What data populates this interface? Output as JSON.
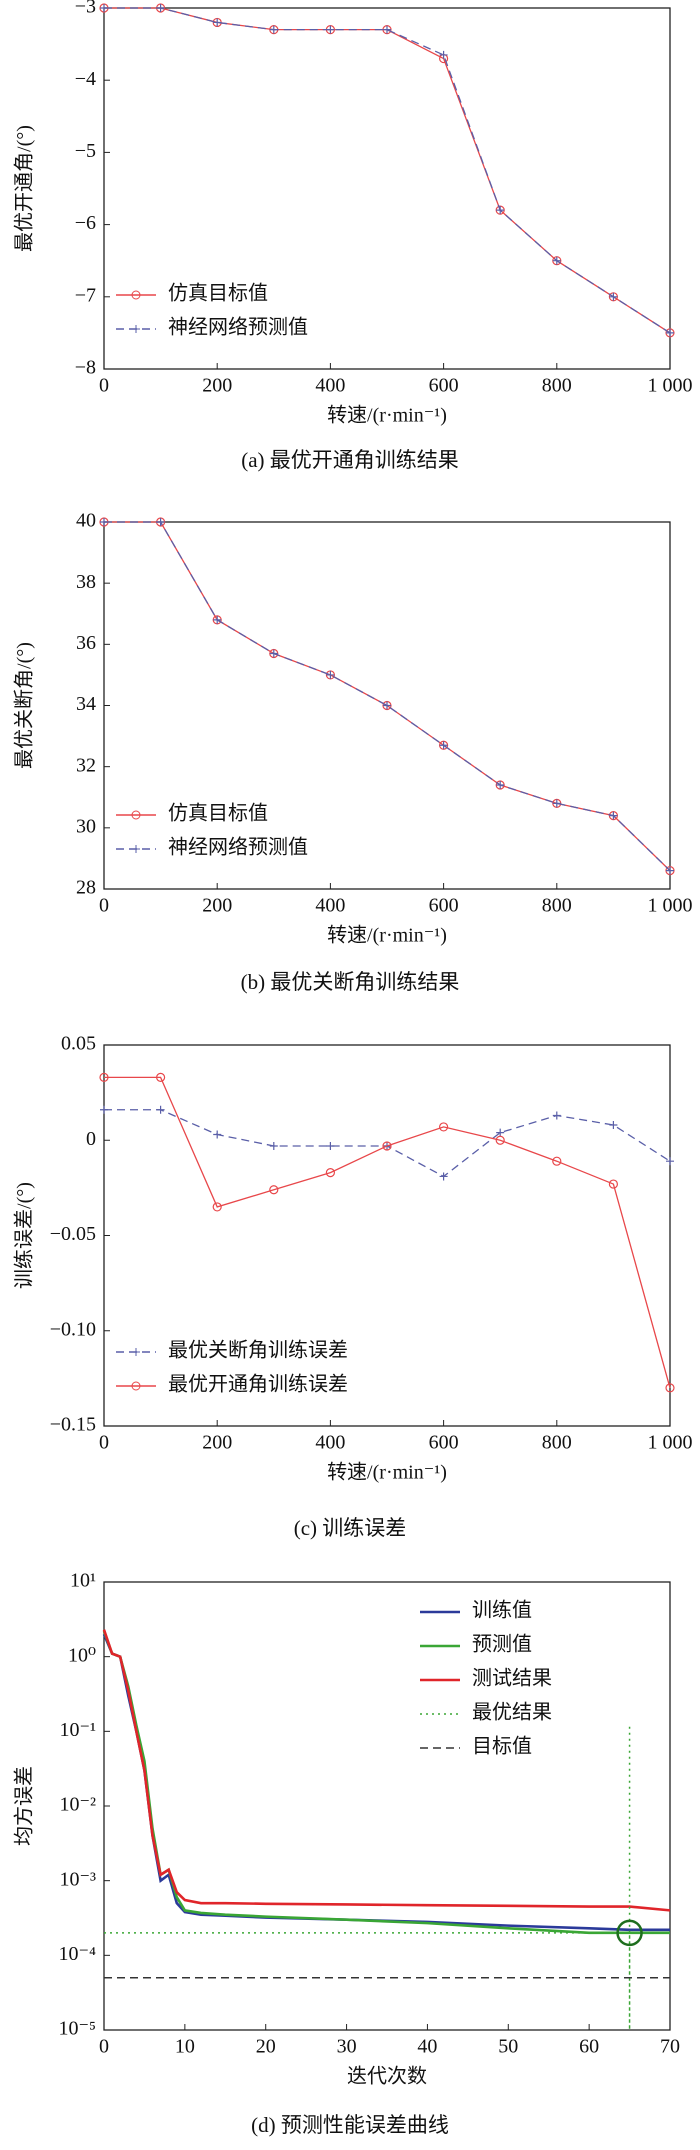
{
  "chart_data": [
    {
      "type": "line",
      "caption": "(a) 最优开通角训练结果",
      "xlabel": "转速/(r·min⁻¹)",
      "ylabel": "最优开通角/(°)",
      "x": [
        0,
        100,
        200,
        300,
        400,
        500,
        600,
        700,
        800,
        900,
        1000
      ],
      "xlim": [
        0,
        1000
      ],
      "xticks": [
        0,
        200,
        400,
        600,
        800,
        {
          "value": 1000,
          "label": "1 000"
        }
      ],
      "ylim": [
        -8,
        -3
      ],
      "yticks": [
        {
          "value": -8,
          "label": "−8"
        },
        {
          "value": -7,
          "label": "−7"
        },
        {
          "value": -6,
          "label": "−6"
        },
        {
          "value": -5,
          "label": "−5"
        },
        {
          "value": -4,
          "label": "−4"
        },
        {
          "value": -3,
          "label": "−3"
        }
      ],
      "legend": "lower left",
      "series": [
        {
          "name": "仿真目标值",
          "color": "#e8474a",
          "dash": "solid",
          "marker": "o",
          "values": [
            -3,
            -3,
            -3.2,
            -3.3,
            -3.3,
            -3.3,
            -3.7,
            -5.8,
            -6.5,
            -7.0,
            -7.5
          ]
        },
        {
          "name": "神经网络预测值",
          "color": "#5a5fa8",
          "dash": "dashed",
          "marker": "+",
          "values": [
            -3,
            -3,
            -3.2,
            -3.3,
            -3.3,
            -3.3,
            -3.65,
            -5.8,
            -6.5,
            -7.0,
            -7.5
          ]
        }
      ]
    },
    {
      "type": "line",
      "caption": "(b) 最优关断角训练结果",
      "xlabel": "转速/(r·min⁻¹)",
      "ylabel": "最优关断角/(°)",
      "x": [
        0,
        100,
        200,
        300,
        400,
        500,
        600,
        700,
        800,
        900,
        1000
      ],
      "xlim": [
        0,
        1000
      ],
      "xticks": [
        0,
        200,
        400,
        600,
        800,
        {
          "value": 1000,
          "label": "1 000"
        }
      ],
      "ylim": [
        28,
        40
      ],
      "yticks": [
        28,
        30,
        32,
        34,
        36,
        38,
        40
      ],
      "legend": "lower left",
      "series": [
        {
          "name": "仿真目标值",
          "color": "#e8474a",
          "dash": "solid",
          "marker": "o",
          "values": [
            40,
            40,
            36.8,
            35.7,
            35.0,
            34.0,
            32.7,
            31.4,
            30.8,
            30.4,
            28.6
          ]
        },
        {
          "name": "神经网络预测值",
          "color": "#5a5fa8",
          "dash": "dashed",
          "marker": "+",
          "values": [
            40,
            40,
            36.8,
            35.7,
            35.0,
            34.0,
            32.7,
            31.4,
            30.8,
            30.4,
            28.6
          ]
        }
      ]
    },
    {
      "type": "line",
      "caption": "(c) 训练误差",
      "xlabel": "转速/(r·min⁻¹)",
      "ylabel": "训练误差/(°)",
      "x": [
        0,
        100,
        200,
        300,
        400,
        500,
        600,
        700,
        800,
        900,
        1000
      ],
      "xlim": [
        0,
        1000
      ],
      "xticks": [
        0,
        200,
        400,
        600,
        800,
        {
          "value": 1000,
          "label": "1 000"
        }
      ],
      "ylim": [
        -0.15,
        0.05
      ],
      "yticks": [
        {
          "value": -0.15,
          "label": "−0.15"
        },
        {
          "value": -0.1,
          "label": "−0.10"
        },
        {
          "value": -0.05,
          "label": "−0.05"
        },
        0,
        0.05
      ],
      "legend": "lower left",
      "series": [
        {
          "name": "最优关断角训练误差",
          "color": "#5a5fa8",
          "dash": "dashed",
          "marker": "+",
          "values": [
            0.016,
            0.016,
            0.003,
            -0.003,
            -0.003,
            -0.003,
            -0.019,
            0.004,
            0.013,
            0.008,
            -0.011
          ]
        },
        {
          "name": "最优开通角训练误差",
          "color": "#e8474a",
          "dash": "solid",
          "marker": "o",
          "values": [
            0.033,
            0.033,
            -0.035,
            -0.026,
            -0.017,
            -0.003,
            0.007,
            0.0,
            -0.011,
            -0.023,
            -0.13
          ]
        }
      ]
    },
    {
      "type": "line",
      "caption": "(d) 预测性能误差曲线",
      "xlabel": "迭代次数",
      "ylabel": "均方误差",
      "x": [
        0,
        1,
        2,
        3,
        4,
        5,
        6,
        7,
        8,
        9,
        10,
        12,
        15,
        20,
        30,
        40,
        50,
        60,
        65,
        70
      ],
      "xlim": [
        0,
        70
      ],
      "xticks": [
        0,
        10,
        20,
        30,
        40,
        50,
        60,
        70
      ],
      "log_y": true,
      "ylim": [
        1e-05,
        10
      ],
      "yticks": [
        {
          "value": 1e-05,
          "label": "10⁻⁵"
        },
        {
          "value": 0.0001,
          "label": "10⁻⁴"
        },
        {
          "value": 0.001,
          "label": "10⁻³"
        },
        {
          "value": 0.01,
          "label": "10⁻²"
        },
        {
          "value": 0.1,
          "label": "10⁻¹"
        },
        {
          "value": 1,
          "label": "10⁰"
        },
        {
          "value": 10,
          "label": "10¹"
        }
      ],
      "legend": "upper right",
      "series": [
        {
          "name": "训练值",
          "color": "#2b3a9a",
          "dash": "solid",
          "values": [
            2,
            1.1,
            1.0,
            0.3,
            0.1,
            0.03,
            0.004,
            0.001,
            0.0012,
            0.0005,
            0.00038,
            0.00035,
            0.00034,
            0.00032,
            0.0003,
            0.00028,
            0.00025,
            0.00023,
            0.00022,
            0.00022
          ]
        },
        {
          "name": "预测值",
          "color": "#3aa635",
          "dash": "solid",
          "values": [
            2.2,
            1.1,
            1.0,
            0.4,
            0.12,
            0.04,
            0.005,
            0.0012,
            0.0014,
            0.0006,
            0.0004,
            0.00037,
            0.00035,
            0.00033,
            0.0003,
            0.00027,
            0.00023,
            0.0002,
            0.0002,
            0.0002
          ]
        },
        {
          "name": "测试结果",
          "color": "#e0252a",
          "dash": "solid",
          "values": [
            2.3,
            1.1,
            1.0,
            0.35,
            0.1,
            0.03,
            0.004,
            0.0012,
            0.0014,
            0.0007,
            0.00055,
            0.0005,
            0.0005,
            0.00049,
            0.00048,
            0.00047,
            0.00046,
            0.00045,
            0.00045,
            0.0004
          ]
        },
        {
          "name": "最优结果",
          "color": "#3aa635",
          "dash": "dotted",
          "ring": true,
          "x": [
            0,
            65,
            65,
            65
          ],
          "values": [
            0.0002,
            0.0002,
            1e-05,
            0.13
          ]
        },
        {
          "name": "目标值",
          "color": "#333333",
          "dash": "dashed",
          "x": [
            0,
            70
          ],
          "values": [
            5e-05,
            5e-05
          ]
        }
      ]
    }
  ]
}
